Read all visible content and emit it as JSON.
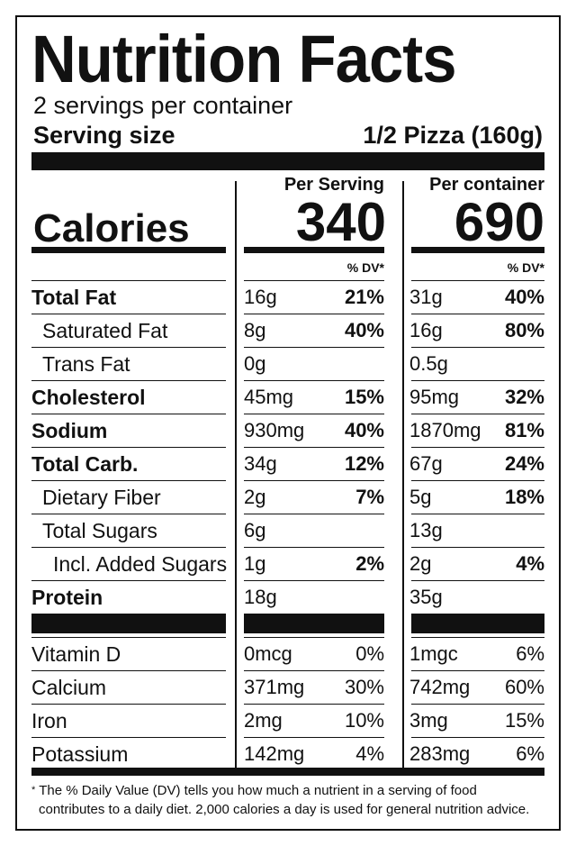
{
  "header": {
    "title": "Nutrition Facts",
    "servings": "2 servings per container",
    "serving_size_label": "Serving size",
    "serving_size_value": "1/2 Pizza (160g)"
  },
  "columns": {
    "per_serving": "Per Serving",
    "per_container": "Per container",
    "dv_label": "% DV*"
  },
  "calories": {
    "label": "Calories",
    "per_serving": "340",
    "per_container": "690"
  },
  "nutrients": [
    {
      "name": "Total Fat",
      "serv_amt": "16g",
      "serv_dv": "21%",
      "cont_amt": "31g",
      "cont_dv": "40%"
    },
    {
      "name": "Saturated Fat",
      "serv_amt": "8g",
      "serv_dv": "40%",
      "cont_amt": "16g",
      "cont_dv": "80%"
    },
    {
      "name": "Trans Fat",
      "serv_amt": "0g",
      "serv_dv": "",
      "cont_amt": "0.5g",
      "cont_dv": ""
    },
    {
      "name": "Cholesterol",
      "serv_amt": "45mg",
      "serv_dv": "15%",
      "cont_amt": "95mg",
      "cont_dv": "32%"
    },
    {
      "name": "Sodium",
      "serv_amt": "930mg",
      "serv_dv": "40%",
      "cont_amt": "1870mg",
      "cont_dv": "81%"
    },
    {
      "name": "Total Carb.",
      "serv_amt": "34g",
      "serv_dv": "12%",
      "cont_amt": "67g",
      "cont_dv": "24%"
    },
    {
      "name": "Dietary Fiber",
      "serv_amt": "2g",
      "serv_dv": "7%",
      "cont_amt": "5g",
      "cont_dv": "18%"
    },
    {
      "name": "Total Sugars",
      "serv_amt": "6g",
      "serv_dv": "",
      "cont_amt": "13g",
      "cont_dv": ""
    },
    {
      "name": "Incl. Added Sugars",
      "serv_amt": "1g",
      "serv_dv": "2%",
      "cont_amt": "2g",
      "cont_dv": "4%"
    },
    {
      "name": "Protein",
      "serv_amt": "18g",
      "serv_dv": "",
      "cont_amt": "35g",
      "cont_dv": ""
    }
  ],
  "vitamins": [
    {
      "name": "Vitamin D",
      "serv_amt": "0mcg",
      "serv_dv": "0%",
      "cont_amt": "1mgc",
      "cont_dv": "6%"
    },
    {
      "name": "Calcium",
      "serv_amt": "371mg",
      "serv_dv": "30%",
      "cont_amt": "742mg",
      "cont_dv": "60%"
    },
    {
      "name": "Iron",
      "serv_amt": "2mg",
      "serv_dv": "10%",
      "cont_amt": "3mg",
      "cont_dv": "15%"
    },
    {
      "name": "Potassium",
      "serv_amt": "142mg",
      "serv_dv": "4%",
      "cont_amt": "283mg",
      "cont_dv": "6%"
    }
  ],
  "footnote": {
    "star": "*",
    "line1": "The % Daily Value (DV) tells you how much a nutrient in a serving of food",
    "line2": "contributes to a daily diet. 2,000 calories a day is used for general nutrition advice."
  }
}
